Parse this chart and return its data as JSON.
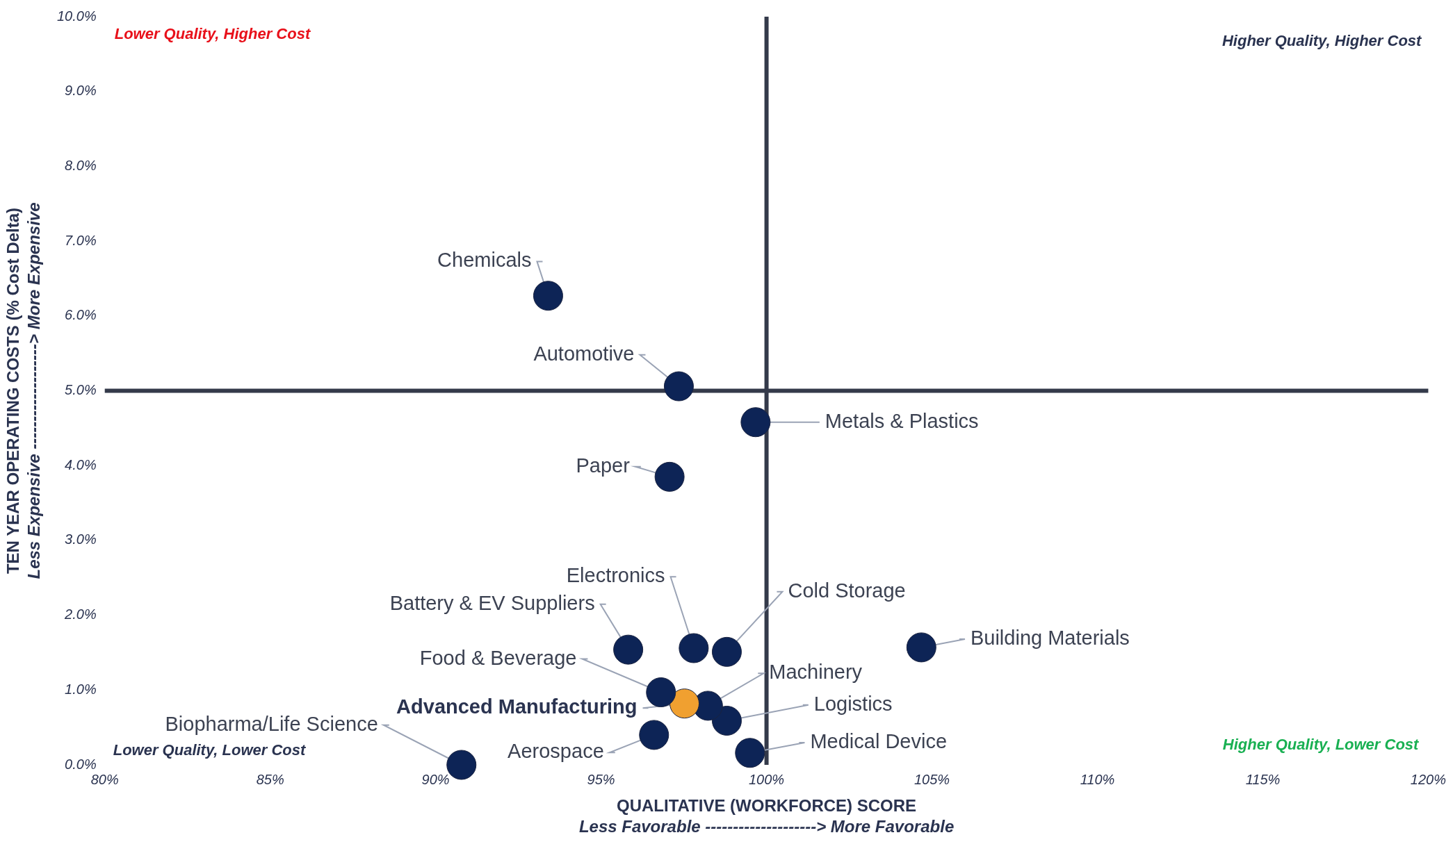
{
  "chart_data": {
    "type": "scatter",
    "xlabel": "QUALITATIVE (WORKFORCE) SCORE\nLess Favorable --------------------> More Favorable",
    "ylabel": "TEN YEAR OPERATING COSTS (% Cost Delta)\nLess Expensive -------------------> More Expensive",
    "xlim": [
      80,
      120
    ],
    "xticks": [
      {
        "value": 80,
        "label": "80%"
      },
      {
        "value": 85,
        "label": "85%"
      },
      {
        "value": 90,
        "label": "90%"
      },
      {
        "value": 95,
        "label": "95%"
      },
      {
        "value": 100,
        "label": "100%"
      },
      {
        "value": 105,
        "label": "105%"
      },
      {
        "value": 110,
        "label": "110%"
      },
      {
        "value": 115,
        "label": "115%"
      },
      {
        "value": 120,
        "label": "120%"
      }
    ],
    "ylim": [
      0,
      10
    ],
    "yticks": [
      {
        "value": 0,
        "label": "0.0%"
      },
      {
        "value": 1,
        "label": "1.0%"
      },
      {
        "value": 2,
        "label": "2.0%"
      },
      {
        "value": 3,
        "label": "3.0%"
      },
      {
        "value": 4,
        "label": "4.0%"
      },
      {
        "value": 5,
        "label": "5.0%"
      },
      {
        "value": 6,
        "label": "6.0%"
      },
      {
        "value": 7,
        "label": "7.0%"
      },
      {
        "value": 8,
        "label": "8.0%"
      },
      {
        "value": 9,
        "label": "9.0%"
      },
      {
        "value": 10,
        "label": "10.0%"
      }
    ],
    "grid": false,
    "legend": false,
    "marker": "circle",
    "series": [
      {
        "name": "Chemicals",
        "color": "#0d2456",
        "x": [
          93.4
        ],
        "values": [
          6.27
        ]
      },
      {
        "name": "Automotive",
        "color": "#0d2456",
        "x": [
          97.35
        ],
        "values": [
          5.06
        ]
      },
      {
        "name": "Metals & Plastics",
        "color": "#0d2456",
        "x": [
          99.67
        ],
        "values": [
          4.58
        ]
      },
      {
        "name": "Paper",
        "color": "#0d2456",
        "x": [
          97.07
        ],
        "values": [
          3.85
        ]
      },
      {
        "name": "Battery & EV Suppliers",
        "color": "#0d2456",
        "x": [
          95.82
        ],
        "values": [
          1.54
        ]
      },
      {
        "name": "Electronics",
        "color": "#0d2456",
        "x": [
          97.8
        ],
        "values": [
          1.56
        ]
      },
      {
        "name": "Cold Storage",
        "color": "#0d2456",
        "x": [
          98.8
        ],
        "values": [
          1.51
        ]
      },
      {
        "name": "Building Materials",
        "color": "#0d2456",
        "x": [
          104.68
        ],
        "values": [
          1.57
        ]
      },
      {
        "name": "Food & Beverage",
        "color": "#0d2456",
        "x": [
          96.81
        ],
        "values": [
          0.97
        ]
      },
      {
        "name": "Advanced Manufacturing",
        "color": "#f0a030",
        "x": [
          97.52
        ],
        "values": [
          0.82
        ]
      },
      {
        "name": "Machinery",
        "color": "#0d2456",
        "x": [
          98.23
        ],
        "values": [
          0.79
        ]
      },
      {
        "name": "Logistics",
        "color": "#0d2456",
        "x": [
          98.8
        ],
        "values": [
          0.59
        ]
      },
      {
        "name": "Aerospace",
        "color": "#0d2456",
        "x": [
          96.6
        ],
        "values": [
          0.4
        ]
      },
      {
        "name": "Medical Device",
        "color": "#0d2456",
        "x": [
          99.5
        ],
        "values": [
          0.16
        ]
      },
      {
        "name": "Biopharma/Life Science",
        "color": "#0d2456",
        "x": [
          90.78
        ],
        "values": [
          0.0
        ]
      }
    ],
    "ref_lines": [
      {
        "axis": "x",
        "value": 100,
        "color": "#343a4a"
      },
      {
        "axis": "y",
        "value": 5,
        "color": "#343a4a"
      }
    ],
    "annotations": [
      "Lower Quality, Higher Cost",
      "Higher Quality, Higher Cost",
      "Lower Quality, Lower Cost",
      "Higher Quality, Lower Cost"
    ]
  }
}
